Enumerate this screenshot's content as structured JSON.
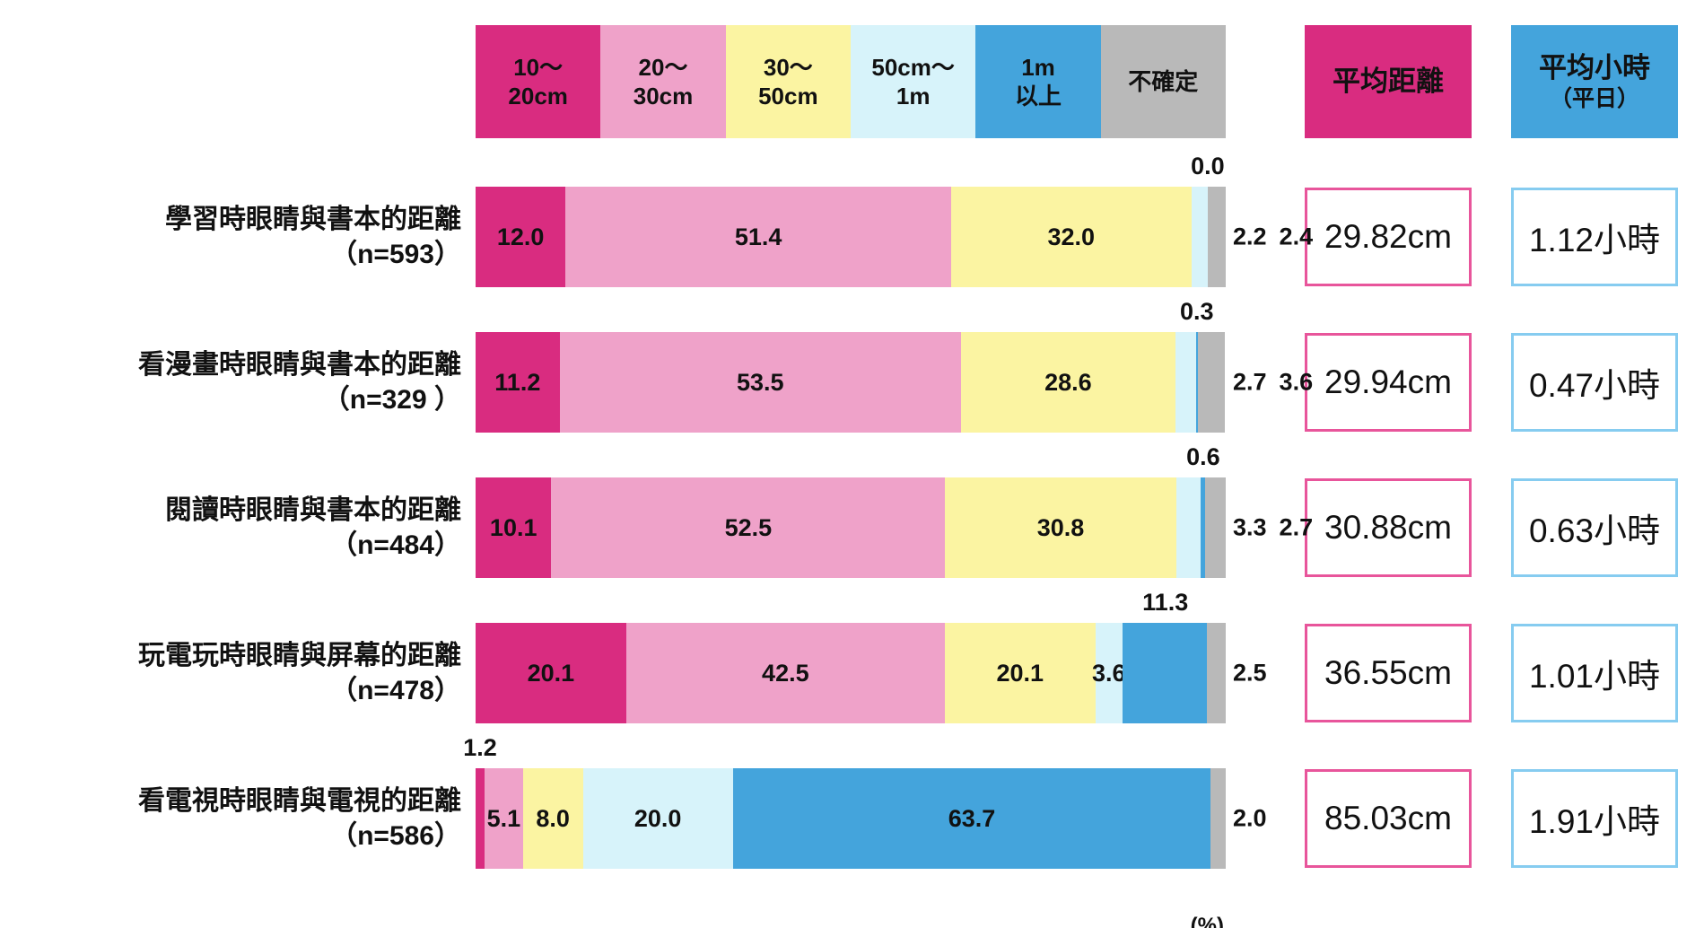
{
  "chart_data": {
    "type": "bar",
    "orientation": "horizontal",
    "stacked": true,
    "unit_label": "(%)",
    "legend": [
      {
        "line1": "10〜",
        "line2": "20cm",
        "color": "#d92c80"
      },
      {
        "line1": "20〜",
        "line2": "30cm",
        "color": "#efa2c9"
      },
      {
        "line1": "30〜",
        "line2": "50cm",
        "color": "#fbf4a2"
      },
      {
        "line1": "50cm〜",
        "line2": "1m",
        "color": "#d7f3fa"
      },
      {
        "line1": "1m",
        "line2": "以上",
        "color": "#44a4dc"
      },
      {
        "line1": "不確定",
        "line2": "",
        "color": "#b9b9b9"
      }
    ],
    "headers": {
      "avg_distance": "平均距離",
      "avg_hours_line1": "平均小時",
      "avg_hours_line2": "（平日）"
    },
    "rows": [
      {
        "label": "學習時眼睛與書本的距離",
        "n": "（n=593）",
        "values": [
          12.0,
          51.4,
          32.0,
          2.2,
          0.0,
          2.4
        ],
        "label_modes": [
          "inside",
          "inside",
          "inside",
          "right",
          "above",
          "right"
        ],
        "avg_distance": "29.82cm",
        "avg_hours": "1.12小時"
      },
      {
        "label": "看漫畫時眼睛與書本的距離",
        "n": "（n=329 ）",
        "values": [
          11.2,
          53.5,
          28.6,
          2.7,
          0.3,
          3.6
        ],
        "label_modes": [
          "inside",
          "inside",
          "inside",
          "right",
          "above",
          "right"
        ],
        "avg_distance": "29.94cm",
        "avg_hours": "0.47小時"
      },
      {
        "label": "閱讀時眼睛與書本的距離",
        "n": "（n=484）",
        "values": [
          10.1,
          52.5,
          30.8,
          3.3,
          0.6,
          2.7
        ],
        "label_modes": [
          "inside",
          "inside",
          "inside",
          "right",
          "above",
          "right"
        ],
        "avg_distance": "30.88cm",
        "avg_hours": "0.63小時"
      },
      {
        "label": "玩電玩時眼睛與屏幕的距離",
        "n": "（n=478）",
        "values": [
          20.1,
          42.5,
          20.1,
          3.6,
          11.3,
          2.5
        ],
        "label_modes": [
          "inside",
          "inside",
          "inside",
          "inside",
          "above",
          "right"
        ],
        "avg_distance": "36.55cm",
        "avg_hours": "1.01小時"
      },
      {
        "label": "看電視時眼睛與電視的距離",
        "n": "（n=586）",
        "values": [
          1.2,
          5.1,
          8.0,
          20.0,
          63.7,
          2.0
        ],
        "label_modes": [
          "above",
          "inside",
          "inside",
          "inside",
          "inside",
          "right"
        ],
        "avg_distance": "85.03cm",
        "avg_hours": "1.91小時"
      }
    ],
    "colors": {
      "segments": [
        "#d92c80",
        "#efa2c9",
        "#fbf4a2",
        "#d7f3fa",
        "#44a4dc",
        "#b9b9b9"
      ],
      "header_distance_bg": "#d92c80",
      "header_hours_bg": "#44a4dc",
      "distance_box_border": "#e8559b",
      "hours_box_border": "#86ccf0"
    }
  }
}
